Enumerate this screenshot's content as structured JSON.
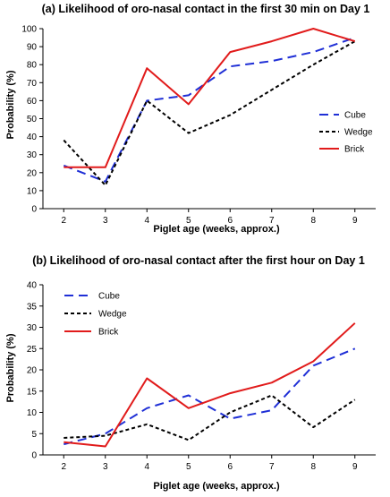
{
  "chart_data": [
    {
      "type": "line",
      "title": "(a) Likelihood of oro-nasal contact in the first 30 min on Day 1",
      "xlabel": "Piglet age (weeks, approx.)",
      "ylabel": "Probability (%)",
      "x": [
        2,
        3,
        4,
        5,
        6,
        7,
        8,
        9
      ],
      "xlim": [
        1.5,
        9.5
      ],
      "ylim": [
        0,
        100
      ],
      "yticks": [
        0,
        10,
        20,
        30,
        40,
        50,
        60,
        70,
        80,
        90,
        100
      ],
      "grid": false,
      "legend_position": "right",
      "series": [
        {
          "name": "Cube",
          "color": "#1f2fd6",
          "dash": "dashed",
          "values": [
            24,
            15,
            60,
            63,
            79,
            82,
            87,
            95
          ]
        },
        {
          "name": "Wedge",
          "color": "#000000",
          "dash": "dotted",
          "values": [
            38,
            13,
            60,
            42,
            52,
            66,
            80,
            93
          ]
        },
        {
          "name": "Brick",
          "color": "#e11b1b",
          "dash": "solid",
          "values": [
            23,
            23,
            78,
            58,
            87,
            93,
            100,
            93
          ]
        }
      ]
    },
    {
      "type": "line",
      "title": "(b) Likelihood of oro-nasal contact after the first hour on Day 1",
      "xlabel": "Piglet age (weeks, approx.)",
      "ylabel": "Probability (%)",
      "x": [
        2,
        3,
        4,
        5,
        6,
        7,
        8,
        9
      ],
      "xlim": [
        1.5,
        9.5
      ],
      "ylim": [
        0,
        40
      ],
      "yticks": [
        0,
        5,
        10,
        15,
        20,
        25,
        30,
        35,
        40
      ],
      "grid": false,
      "legend_position": "top-left",
      "series": [
        {
          "name": "Cube",
          "color": "#1f2fd6",
          "dash": "dashed",
          "values": [
            2.5,
            5,
            11,
            14,
            8.5,
            10.5,
            21,
            25
          ]
        },
        {
          "name": "Wedge",
          "color": "#000000",
          "dash": "dotted",
          "values": [
            4,
            4.5,
            7.2,
            3.5,
            10,
            14,
            6.5,
            13
          ]
        },
        {
          "name": "Brick",
          "color": "#e11b1b",
          "dash": "solid",
          "values": [
            3,
            2,
            18,
            11,
            14.5,
            17,
            22,
            31
          ]
        }
      ]
    }
  ]
}
